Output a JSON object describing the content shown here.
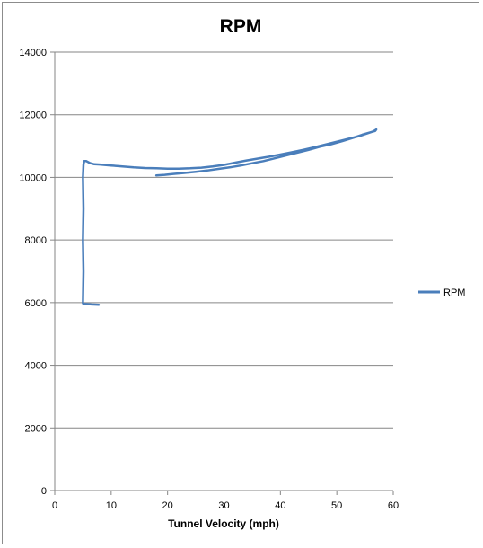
{
  "chart_data": {
    "type": "scatter",
    "title": "RPM",
    "xlabel": "Tunnel Velocity (mph)",
    "ylabel": "",
    "xlim": [
      0,
      60
    ],
    "ylim": [
      0,
      14000
    ],
    "xticks": [
      0,
      10,
      20,
      30,
      40,
      50,
      60
    ],
    "yticks": [
      0,
      2000,
      4000,
      6000,
      8000,
      10000,
      12000,
      14000
    ],
    "grid": "horizontal",
    "legend_position": "right",
    "series": [
      {
        "name": "RPM",
        "color": "#4a7ebb",
        "points": [
          [
            7.8,
            5930
          ],
          [
            6.5,
            5940
          ],
          [
            5.2,
            5960
          ],
          [
            5.0,
            5980
          ],
          [
            5.1,
            7000
          ],
          [
            5.0,
            8000
          ],
          [
            5.1,
            9000
          ],
          [
            5.0,
            10000
          ],
          [
            5.1,
            10400
          ],
          [
            5.2,
            10520
          ],
          [
            5.6,
            10520
          ],
          [
            6.2,
            10460
          ],
          [
            7.0,
            10420
          ],
          [
            8.0,
            10410
          ],
          [
            10.0,
            10380
          ],
          [
            12.0,
            10350
          ],
          [
            14.0,
            10320
          ],
          [
            16.0,
            10300
          ],
          [
            18.0,
            10290
          ],
          [
            20.0,
            10280
          ],
          [
            22.0,
            10280
          ],
          [
            24.0,
            10290
          ],
          [
            26.0,
            10310
          ],
          [
            28.0,
            10350
          ],
          [
            30.0,
            10400
          ],
          [
            32.0,
            10470
          ],
          [
            34.0,
            10540
          ],
          [
            36.0,
            10600
          ],
          [
            38.0,
            10660
          ],
          [
            40.0,
            10730
          ],
          [
            42.0,
            10800
          ],
          [
            44.0,
            10880
          ],
          [
            46.0,
            10960
          ],
          [
            48.0,
            11050
          ],
          [
            50.0,
            11140
          ],
          [
            52.0,
            11230
          ],
          [
            54.0,
            11320
          ],
          [
            55.5,
            11410
          ],
          [
            56.5,
            11470
          ],
          [
            57.0,
            11530
          ],
          [
            56.8,
            11480
          ],
          [
            56.0,
            11440
          ],
          [
            54.5,
            11360
          ],
          [
            53.0,
            11270
          ],
          [
            51.0,
            11160
          ],
          [
            49.0,
            11060
          ],
          [
            47.0,
            10980
          ],
          [
            45.0,
            10880
          ],
          [
            43.0,
            10790
          ],
          [
            41.0,
            10700
          ],
          [
            39.0,
            10610
          ],
          [
            37.0,
            10520
          ],
          [
            35.0,
            10450
          ],
          [
            33.0,
            10380
          ],
          [
            31.0,
            10320
          ],
          [
            29.0,
            10270
          ],
          [
            27.0,
            10220
          ],
          [
            25.0,
            10180
          ],
          [
            23.0,
            10140
          ],
          [
            21.0,
            10110
          ],
          [
            19.5,
            10080
          ],
          [
            18.0,
            10060
          ]
        ]
      }
    ]
  }
}
